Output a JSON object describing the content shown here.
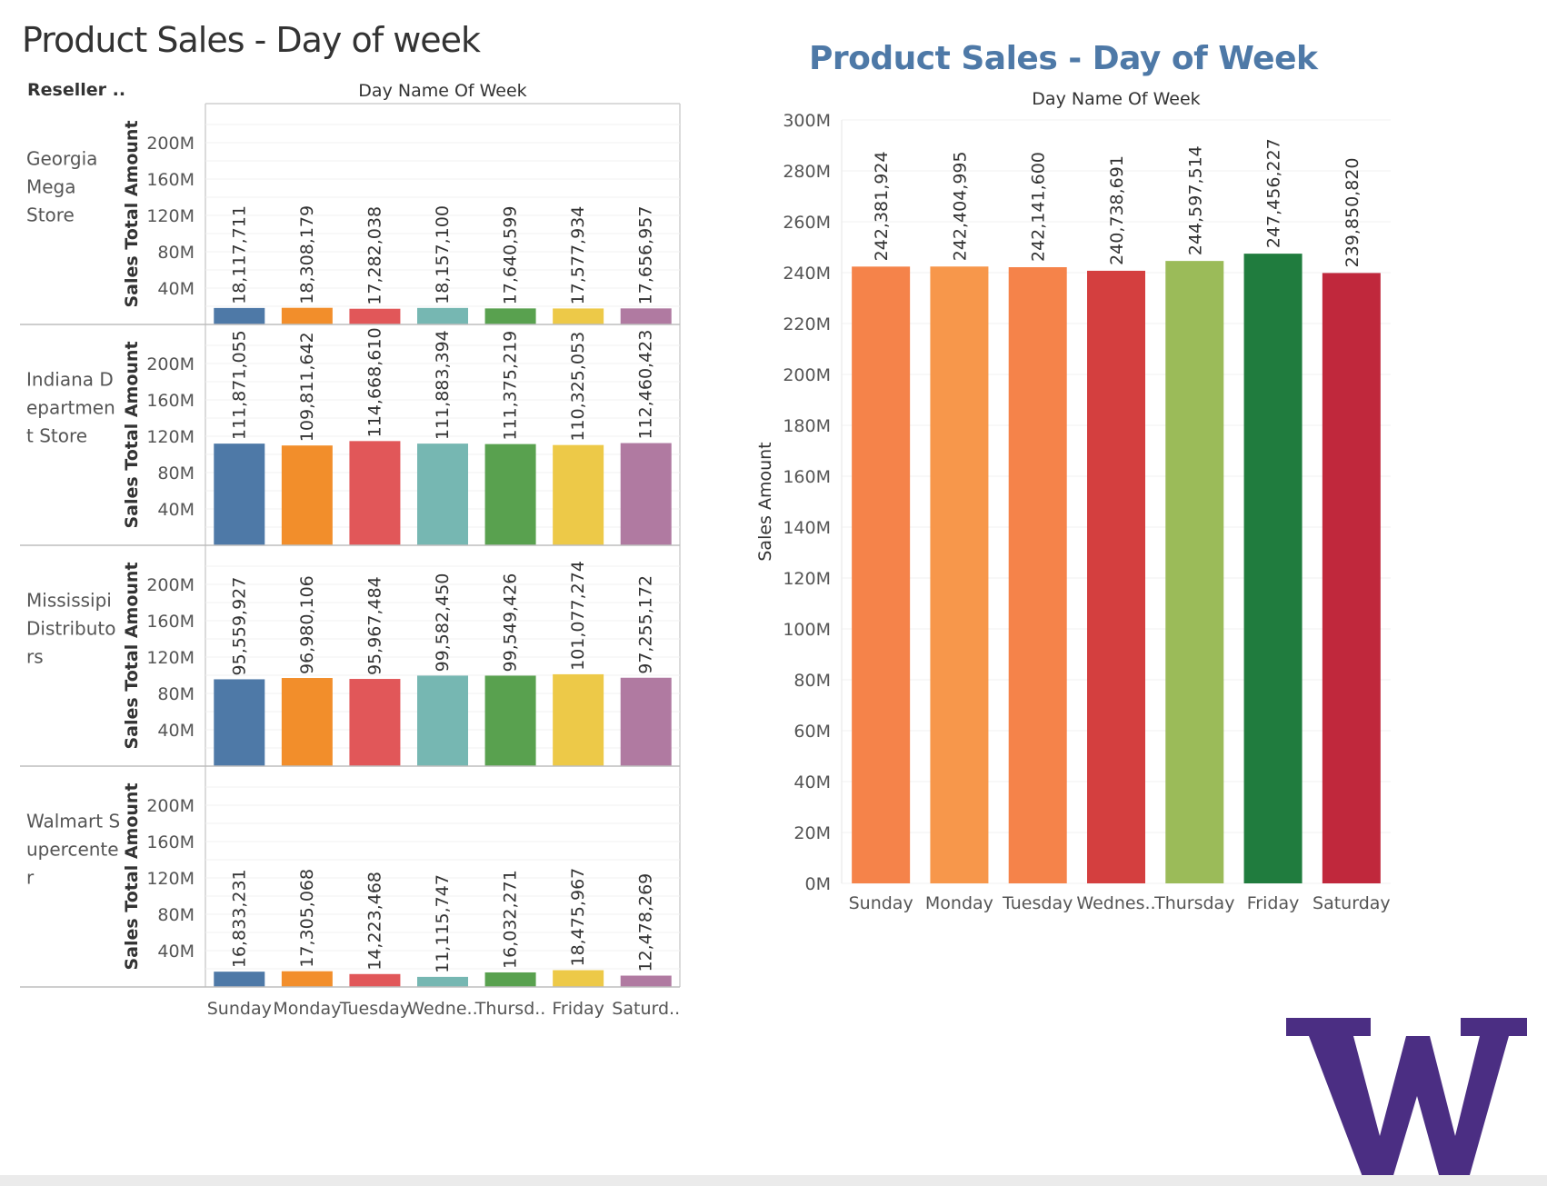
{
  "left_panel": {
    "title": "Product Sales - Day of week",
    "row_header": "Reseller ..",
    "column_header": "Day Name Of Week"
  },
  "right_panel": {
    "title": "Product Sales - Day of Week",
    "column_header": "Day Name Of Week"
  },
  "colors": {
    "left_palette": [
      "#4e79a7",
      "#f28e2b",
      "#e15759",
      "#76b7b2",
      "#59a14f",
      "#edc948",
      "#b07aa1"
    ],
    "right_palette": [
      "#f5834a",
      "#f7974b",
      "#f5834a",
      "#d43f3f",
      "#9bbb59",
      "#207c3e",
      "#c0283c"
    ],
    "right_title": "#4e79a7",
    "logo": "#4b2e83"
  },
  "logo": {
    "icon": "uw-w-logo",
    "text": "W"
  },
  "chart_data": [
    {
      "type": "bar",
      "title": "Product Sales - Day of week",
      "categories": [
        "Sunday",
        "Monday",
        "Tuesday",
        "Wedne..",
        "Thursd..",
        "Friday",
        "Saturd.."
      ],
      "facet_label": "Reseller ..",
      "xlabel": "Day Name Of Week",
      "ylabel": "Sales Total Amount",
      "ylim": [
        0,
        235000000
      ],
      "yticks": [
        40000000,
        80000000,
        120000000,
        160000000,
        200000000
      ],
      "ytick_labels": [
        "40M",
        "80M",
        "120M",
        "160M",
        "200M"
      ],
      "grid": true,
      "panels": [
        {
          "name": "Georgia Mega Store",
          "name_lines": [
            "Georgia",
            "Mega",
            "Store"
          ],
          "values": [
            18117711,
            18308179,
            17282038,
            18157100,
            17640599,
            17577934,
            17656957
          ],
          "labels": [
            "18,117,711",
            "18,308,179",
            "17,282,038",
            "18,157,100",
            "17,640,599",
            "17,577,934",
            "17,656,957"
          ]
        },
        {
          "name": "Indiana Department Store",
          "name_lines": [
            "Indiana D",
            "epartmen",
            "t Store"
          ],
          "values": [
            111871055,
            109811642,
            114668610,
            111883394,
            111375219,
            110325053,
            112460423
          ],
          "labels": [
            "111,871,055",
            "109,811,642",
            "114,668,610",
            "111,883,394",
            "111,375,219",
            "110,325,053",
            "112,460,423"
          ]
        },
        {
          "name": "Mississipi Distributors",
          "name_lines": [
            "Mississipi",
            "Distributo",
            "rs"
          ],
          "values": [
            95559927,
            96980106,
            95967484,
            99582450,
            99549426,
            101077274,
            97255172
          ],
          "labels": [
            "95,559,927",
            "96,980,106",
            "95,967,484",
            "99,582,450",
            "99,549,426",
            "101,077,274",
            "97,255,172"
          ]
        },
        {
          "name": "Walmart Supercenter",
          "name_lines": [
            "Walmart S",
            "upercente",
            "r"
          ],
          "values": [
            16833231,
            17305068,
            14223468,
            11115747,
            16032271,
            18475967,
            12478269
          ],
          "labels": [
            "16,833,231",
            "17,305,068",
            "14,223,468",
            "11,115,747",
            "16,032,271",
            "18,475,967",
            "12,478,269"
          ]
        }
      ]
    },
    {
      "type": "bar",
      "title": "Product Sales - Day of Week",
      "categories": [
        "Sunday",
        "Monday",
        "Tuesday",
        "Wednes..",
        "Thursday",
        "Friday",
        "Saturday"
      ],
      "xlabel": "Day Name Of Week",
      "ylabel": "Sales Amount",
      "ylim": [
        0,
        300000000
      ],
      "yticks": [
        0,
        20000000,
        40000000,
        60000000,
        80000000,
        100000000,
        120000000,
        140000000,
        160000000,
        180000000,
        200000000,
        220000000,
        240000000,
        260000000,
        280000000,
        300000000
      ],
      "ytick_labels": [
        "0M",
        "20M",
        "40M",
        "60M",
        "80M",
        "100M",
        "120M",
        "140M",
        "160M",
        "180M",
        "200M",
        "220M",
        "240M",
        "260M",
        "280M",
        "300M"
      ],
      "grid": true,
      "values": [
        242381924,
        242404995,
        242141600,
        240738691,
        244597514,
        247456227,
        239850820
      ],
      "labels": [
        "242,381,924",
        "242,404,995",
        "242,141,600",
        "240,738,691",
        "244,597,514",
        "247,456,227",
        "239,850,820"
      ]
    }
  ]
}
